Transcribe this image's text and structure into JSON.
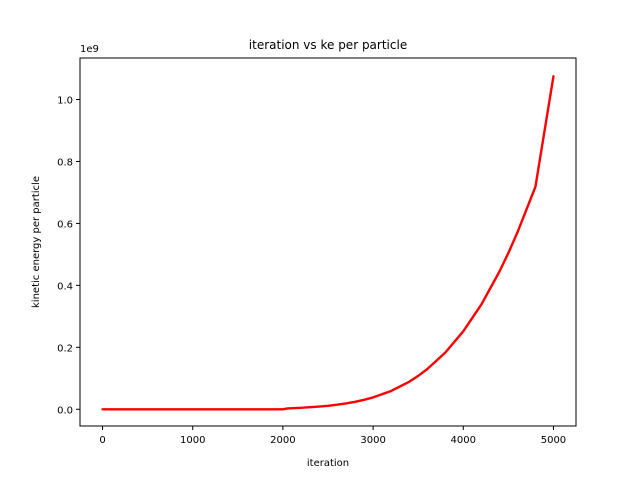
{
  "chart_data": {
    "type": "line",
    "title": "iteration vs ke per particle",
    "xlabel": "iteration",
    "ylabel": "kinetic energy per particle",
    "y_offset_label": "1e9",
    "xlim": [
      -250,
      5250
    ],
    "ylim": [
      -0.054,
      1.134
    ],
    "y_scale_factor": 1000000000,
    "x_ticks": [
      0,
      1000,
      2000,
      3000,
      4000,
      5000
    ],
    "x_tick_labels": [
      "0",
      "1000",
      "2000",
      "3000",
      "4000",
      "5000"
    ],
    "y_ticks": [
      0.0,
      0.2,
      0.4,
      0.6,
      0.8,
      1.0
    ],
    "y_tick_labels": [
      "0.0",
      "0.2",
      "0.4",
      "0.6",
      "0.8",
      "1.0"
    ],
    "grid": false,
    "series": [
      {
        "color": "#ff0000",
        "x": [
          0,
          500,
          1000,
          1500,
          2000,
          2050,
          2200,
          2400,
          2500,
          2600,
          2700,
          2800,
          2900,
          3000,
          3200,
          3400,
          3500,
          3600,
          3800,
          4000,
          4200,
          4400,
          4500,
          4600,
          4800,
          5000
        ],
        "values": [
          0.0,
          0.0,
          0.0,
          0.0,
          0.0,
          0.0026,
          0.0048,
          0.0087,
          0.0113,
          0.0147,
          0.0189,
          0.0241,
          0.0305,
          0.0383,
          0.0591,
          0.0887,
          0.1077,
          0.1296,
          0.183,
          0.2517,
          0.3379,
          0.444,
          0.5046,
          0.5706,
          0.7182,
          1.075
        ]
      }
    ]
  }
}
